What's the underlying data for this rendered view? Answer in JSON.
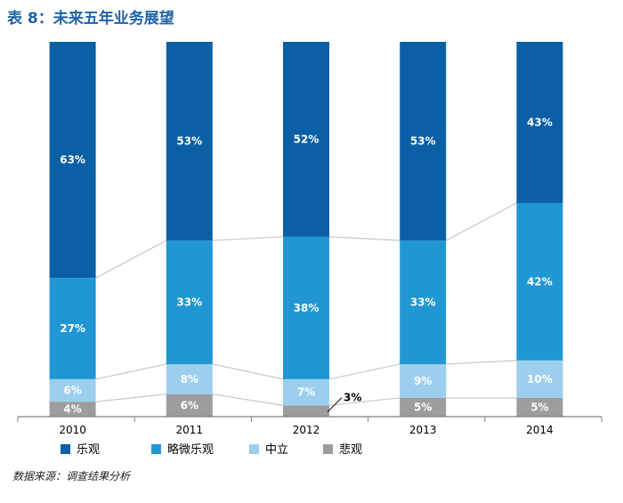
{
  "title": "表 8：未来五年业务展望",
  "source": "数据来源：调查结果分析",
  "chart_data": {
    "type": "bar",
    "stacked": true,
    "categories": [
      "2010",
      "2011",
      "2012",
      "2013",
      "2014"
    ],
    "series": [
      {
        "name": "悲观",
        "values": [
          4,
          6,
          3,
          5,
          5
        ],
        "labels": [
          "4%",
          "6%",
          "3%",
          "5%",
          "5%"
        ],
        "color": "#9d9d9d"
      },
      {
        "name": "中立",
        "values": [
          6,
          8,
          7,
          9,
          10
        ],
        "labels": [
          "6%",
          "8%",
          "7%",
          "9%",
          "10%"
        ],
        "color": "#9ccfee"
      },
      {
        "name": "略微乐观",
        "values": [
          27,
          33,
          38,
          33,
          42
        ],
        "labels": [
          "27%",
          "33%",
          "38%",
          "33%",
          "42%"
        ],
        "color": "#2196d4"
      },
      {
        "name": "乐观",
        "values": [
          63,
          53,
          52,
          53,
          43
        ],
        "labels": [
          "63%",
          "53%",
          "52%",
          "53%",
          "43%"
        ],
        "color": "#0b5fa5"
      }
    ],
    "legend_order": [
      "乐观",
      "略微乐观",
      "中立",
      "悲观"
    ],
    "ylim": [
      0,
      100
    ],
    "xlabel": "",
    "ylabel": "",
    "legend_position": "bottom",
    "connector_lines": true
  }
}
